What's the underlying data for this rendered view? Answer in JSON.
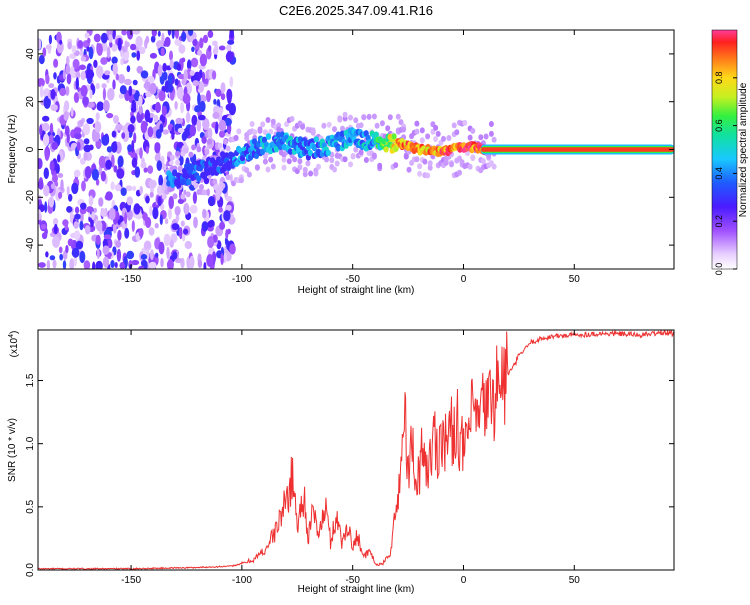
{
  "figure_title": "C2E6.2025.347.09.41.R16",
  "chart_data": [
    {
      "type": "heatmap",
      "title": "C2E6.2025.347.09.41.R16",
      "xlabel": "Height of straight line (km)",
      "ylabel": "Frequency (Hz)",
      "xlim": [
        -192,
        95
      ],
      "ylim": [
        -50,
        50
      ],
      "xticks": [
        -150,
        -100,
        -50,
        0,
        50
      ],
      "yticks": [
        -40,
        -20,
        0,
        20,
        40
      ],
      "xtick_labels": [
        "-150",
        "-100",
        "-50",
        "0",
        "50"
      ],
      "ytick_labels": [
        "-40",
        "-20",
        "0",
        "20",
        "40"
      ],
      "colorbar": {
        "label": "Normalized spectral amplitude",
        "range": [
          0.0,
          1.0
        ],
        "ticks": [
          0.0,
          0.2,
          0.4,
          0.6,
          0.8
        ],
        "tick_labels": [
          "0.0",
          "0.2",
          "0.4",
          "0.6",
          "0.8"
        ]
      },
      "noise_region_km": [
        -192,
        -108
      ],
      "signal_ridge": {
        "x": [
          -130,
          -110,
          -100,
          -90,
          -80,
          -70,
          -60,
          -50,
          -40,
          -30,
          -20,
          -15,
          -10,
          -5,
          0,
          5,
          10,
          20,
          40,
          60,
          80,
          95
        ],
        "freq": [
          -12,
          -6,
          -2,
          2,
          3,
          0,
          2,
          5,
          3,
          3,
          0,
          0,
          -1,
          0,
          1,
          1,
          0,
          0,
          0,
          0,
          0,
          0
        ],
        "amplitude": [
          0.35,
          0.3,
          0.4,
          0.45,
          0.45,
          0.4,
          0.45,
          0.45,
          0.5,
          0.85,
          0.9,
          0.85,
          0.9,
          0.9,
          0.95,
          0.9,
          0.95,
          1.0,
          1.0,
          1.0,
          1.0,
          1.0
        ]
      }
    },
    {
      "type": "line",
      "title": "",
      "xlabel": "Height of straight line (km)",
      "ylabel": "SNR (10 * v/v)",
      "y_multiplier_label": "(x10",
      "y_multiplier_exp": "4",
      "y_multiplier_close": ")",
      "xlim": [
        -192,
        95
      ],
      "ylim": [
        0,
        1.9
      ],
      "xticks": [
        -150,
        -100,
        -50,
        0,
        50
      ],
      "yticks": [
        0.0,
        0.5,
        1.0,
        1.5
      ],
      "xtick_labels": [
        "-150",
        "-100",
        "-50",
        "0",
        "50"
      ],
      "ytick_labels": [
        "0.0",
        "0.5",
        "1.0",
        "1.5"
      ],
      "series": [
        {
          "name": "SNR",
          "color": "#ee3030",
          "x": [
            -192,
            -150,
            -120,
            -105,
            -100,
            -95,
            -90,
            -85,
            -80,
            -77,
            -75,
            -72,
            -70,
            -68,
            -65,
            -62,
            -60,
            -57,
            -55,
            -52,
            -50,
            -48,
            -45,
            -42,
            -40,
            -37,
            -35,
            -33,
            -30,
            -28,
            -26,
            -25,
            -23,
            -22,
            -20,
            -18,
            -16,
            -15,
            -13,
            -11,
            -10,
            -8,
            -5,
            -3,
            0,
            2,
            5,
            7,
            10,
            12,
            15,
            18,
            20,
            23,
            25,
            28,
            30,
            35,
            40,
            50,
            60,
            70,
            80,
            90,
            95
          ],
          "values": [
            0.01,
            0.01,
            0.02,
            0.03,
            0.05,
            0.08,
            0.15,
            0.3,
            0.55,
            0.75,
            0.35,
            0.6,
            0.25,
            0.45,
            0.3,
            0.5,
            0.22,
            0.45,
            0.2,
            0.38,
            0.15,
            0.3,
            0.1,
            0.15,
            0.05,
            0.04,
            0.08,
            0.15,
            0.5,
            0.9,
            1.25,
            0.7,
            1.05,
            0.55,
            0.8,
            1.0,
            0.75,
            0.9,
            1.05,
            0.95,
            1.15,
            1.0,
            1.1,
            1.2,
            0.9,
            1.1,
            1.25,
            1.15,
            1.35,
            1.3,
            1.45,
            1.5,
            1.55,
            1.62,
            1.7,
            1.75,
            1.8,
            1.83,
            1.85,
            1.86,
            1.87,
            1.87,
            1.86,
            1.88,
            1.87
          ]
        }
      ]
    }
  ]
}
